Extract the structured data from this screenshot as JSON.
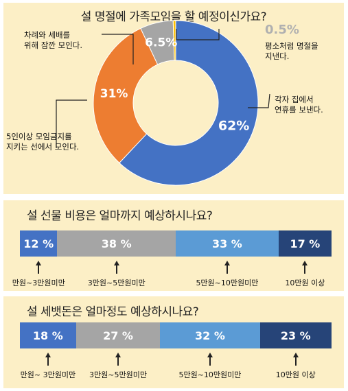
{
  "donut": {
    "title": "설 명절에 가족모임을 할 예정이신가요?",
    "labels": [
      {
        "line1": "각자 집에서",
        "line2": "연휴를 보낸다."
      },
      {
        "line1": "5인이상 모임금지를",
        "line2": "지키는 선에서 모인다."
      },
      {
        "line1": "차례와 세배를",
        "line2": "위해 잠깐 모인다."
      },
      {
        "line1": "평소처럼 명절을",
        "line2": "지낸다."
      }
    ],
    "small_value_label": "0.5%"
  },
  "cost": {
    "title": "설 선물 비용은 얼마까지 예상하시나요?"
  },
  "allowance": {
    "title": "설 세뱃돈은 얼마정도 예상하시나요?"
  },
  "chart_data": [
    {
      "type": "pie",
      "title": "설 명절에 가족모임을 할 예정이신가요?",
      "categories": [
        "각자 집에서 연휴를 보낸다.",
        "5인이상 모임금지를 지키는 선에서 모인다.",
        "차례와 세배를 위해 잠깐 모인다.",
        "평소처럼 명절을 지낸다."
      ],
      "values": [
        62,
        31,
        6.5,
        0.5
      ],
      "value_labels": [
        "62%",
        "31%",
        "6.5%",
        "0.5%"
      ],
      "colors": [
        "#4472c4",
        "#ed7d31",
        "#a5a5a5",
        "#ffc000"
      ]
    },
    {
      "type": "bar",
      "title": "설 선물 비용은 얼마까지 예상하시나요?",
      "categories": [
        "만원~3만원미만",
        "3만원~5만원미만",
        "5만원~10만원미만",
        "10만원 이상"
      ],
      "values": [
        12,
        38,
        33,
        17
      ],
      "value_labels": [
        "12 %",
        "38 %",
        "33 %",
        "17 %"
      ],
      "colors": [
        "#4472c4",
        "#a5a5a5",
        "#5b9bd5",
        "#264478"
      ]
    },
    {
      "type": "bar",
      "title": "설 세뱃돈은 얼마정도 예상하시나요?",
      "categories": [
        "만원~ 3만원미만",
        "3만원~5만원미만",
        "5만원~10만원미만",
        "10만원 이상"
      ],
      "values": [
        18,
        27,
        32,
        23
      ],
      "value_labels": [
        "18 %",
        "27 %",
        "32 %",
        "23 %"
      ],
      "colors": [
        "#4472c4",
        "#a5a5a5",
        "#5b9bd5",
        "#264478"
      ]
    }
  ]
}
